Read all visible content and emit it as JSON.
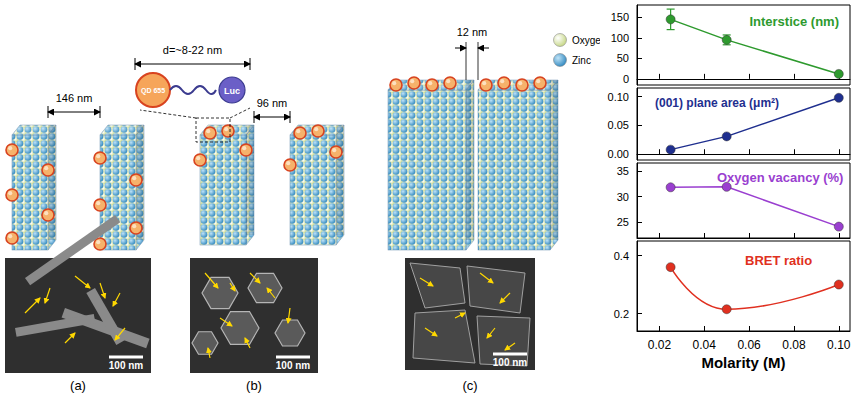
{
  "diagram": {
    "panels": [
      {
        "label": "(a)",
        "gap": "146 nm",
        "scale_bar": "100 nm"
      },
      {
        "label": "(b)",
        "gap": "96 nm",
        "scale_bar": "100 nm",
        "inset": {
          "size": "d=~8-22 nm",
          "quantum_dot": "QD 655",
          "enzyme": "Luc"
        }
      },
      {
        "label": "(c)",
        "gap": "12 nm",
        "scale_bar": "100 nm"
      }
    ],
    "atoms": [
      {
        "name": "Oxygen",
        "color": "#c9d98c"
      },
      {
        "name": "Zinc",
        "color": "#3b8fc4"
      }
    ]
  },
  "chart_data": [
    {
      "type": "line",
      "title": "Interstice (nm)",
      "color": "#2e9a2e",
      "x": [
        0.025,
        0.05,
        0.1
      ],
      "values": [
        145,
        95,
        12
      ],
      "errors": [
        25,
        12,
        3
      ],
      "xlim": [
        0.01,
        0.105
      ],
      "xticks": [
        0.02,
        0.04,
        0.06,
        0.08,
        {
          "value": 0.1,
          "label": "0.10"
        }
      ],
      "ylim": [
        -15,
        180
      ],
      "yticks": [
        0,
        50,
        100,
        150
      ],
      "marker": "circle",
      "line_style": "solid",
      "grid": false,
      "tick_labels": "y"
    },
    {
      "type": "line",
      "title": "(001) plane area (μm²)",
      "color": "#1f2f8f",
      "x": [
        0.025,
        0.05,
        0.1
      ],
      "values": [
        0.008,
        0.031,
        0.098
      ],
      "xlim": [
        0.01,
        0.105
      ],
      "xticks": [
        0.02,
        0.04,
        0.06,
        0.08,
        {
          "value": 0.1,
          "label": "0.10"
        }
      ],
      "ylim": [
        -0.01,
        0.115
      ],
      "yticks": [
        {
          "value": 0,
          "label": "0.00"
        },
        0.05,
        {
          "value": 0.1,
          "label": "0.10"
        }
      ],
      "marker": "circle",
      "line_style": "solid",
      "grid": false,
      "tick_labels": "y"
    },
    {
      "type": "line",
      "title": "Oxygen vacancy (%)",
      "color": "#9a3fd0",
      "x": [
        0.025,
        0.05,
        0.1
      ],
      "values": [
        31.8,
        31.9,
        24.2
      ],
      "xlim": [
        0.01,
        0.105
      ],
      "xticks": [
        0.02,
        0.04,
        0.06,
        0.08,
        {
          "value": 0.1,
          "label": "0.10"
        }
      ],
      "ylim": [
        22,
        36.5
      ],
      "yticks": [
        25,
        30,
        35
      ],
      "marker": "circle",
      "line_style": "solid",
      "grid": false,
      "tick_labels": "y"
    },
    {
      "type": "line",
      "title": "BRET ratio",
      "color": "#e03020",
      "x": [
        0.025,
        0.05,
        0.1
      ],
      "values": [
        0.36,
        0.215,
        0.3
      ],
      "xlabel": "Molarity (M)",
      "xlim": [
        0.01,
        0.105
      ],
      "xticks": [
        0.02,
        0.04,
        0.06,
        0.08,
        {
          "value": 0.1,
          "label": "0.10"
        }
      ],
      "ylim": [
        0.14,
        0.45
      ],
      "yticks": [
        0.2,
        0.4
      ],
      "marker": "circle",
      "line_style": "smooth",
      "grid": false,
      "tick_labels": true
    }
  ]
}
